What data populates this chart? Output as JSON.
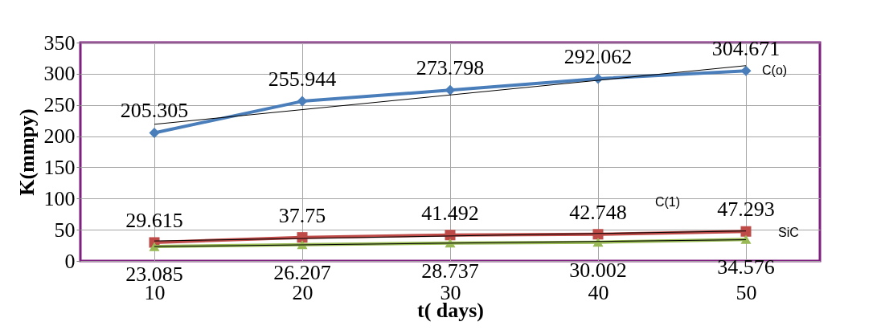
{
  "chart_data": {
    "type": "line",
    "xlabel": "t( days)",
    "ylabel": "K(mmpy)",
    "categories": [
      "10",
      "20",
      "30",
      "40",
      "50"
    ],
    "ylim": [
      0,
      350
    ],
    "yticks": [
      0,
      50,
      100,
      150,
      200,
      250,
      300,
      350
    ],
    "grid": true,
    "series": [
      {
        "name": "C(o)",
        "color": "#4a7ebb",
        "marker": "diamond",
        "values": [
          205.305,
          255.944,
          273.798,
          292.062,
          304.671
        ],
        "value_labels": [
          "205.305",
          "255.944",
          "273.798",
          "292.062",
          "304.671"
        ]
      },
      {
        "name": "C(1)",
        "color": "#be4b48",
        "marker": "square",
        "values": [
          29.615,
          37.75,
          41.492,
          42.748,
          47.293
        ],
        "value_labels": [
          "29.615",
          "37.75",
          "41.492",
          "42.748",
          "47.293"
        ]
      },
      {
        "name": "SiC",
        "color": "#98b954",
        "marker": "triangle",
        "values": [
          23.085,
          26.207,
          28.737,
          30.002,
          34.576
        ],
        "value_labels": [
          "23.085",
          "26.207",
          "28.737",
          "30.002",
          "34.576"
        ]
      },
      {
        "type": "line",
        "color": "#000000",
        "marker": "none",
        "x": [
          "10",
          "50"
        ],
        "values": [
          219,
          313
        ]
      },
      {
        "type": "line",
        "color": "#000000",
        "marker": "none",
        "x": [
          "10",
          "50"
        ],
        "values": [
          32,
          48
        ]
      },
      {
        "type": "line",
        "color": "#000000",
        "marker": "none",
        "x": [
          "10",
          "50"
        ],
        "values": [
          23,
          34
        ]
      }
    ]
  }
}
